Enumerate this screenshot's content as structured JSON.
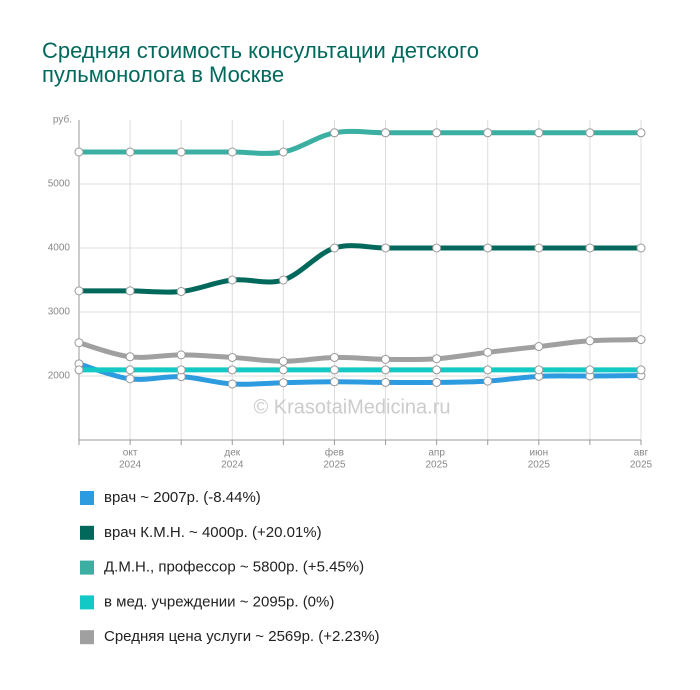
{
  "chart_data": {
    "type": "line",
    "title": [
      "Средняя стоимость консультации детского",
      "пульмонолога в Москве"
    ],
    "y_unit": "руб.",
    "watermark": "© KrasotaiMedicina.ru",
    "categories": [
      null,
      "окт",
      null,
      "дек",
      null,
      "фев",
      null,
      "апр",
      null,
      "июн",
      null,
      "авг"
    ],
    "category_years": [
      null,
      "2024",
      null,
      "2024",
      null,
      "2025",
      null,
      "2025",
      null,
      "2025",
      null,
      "2025"
    ],
    "ylim": [
      1000,
      6000
    ],
    "yticks": [
      2000,
      3000,
      4000,
      5000
    ],
    "grid": true,
    "series": [
      {
        "name": "врач ~ 2007р. (-8.44%)",
        "color": "#2d9be0",
        "values": [
          2190,
          1955,
          1990,
          1875,
          1895,
          1910,
          1900,
          1900,
          1920,
          1995,
          2000,
          2007
        ]
      },
      {
        "name": "врач К.М.Н. ~ 4000р. (+20.01%)",
        "color": "#00695c",
        "values": [
          3330,
          3330,
          3320,
          3500,
          3500,
          4000,
          4000,
          4000,
          4000,
          4000,
          4000,
          4000
        ]
      },
      {
        "name": "Д.М.Н., профессор ~ 5800р. (+5.45%)",
        "color": "#3aafa2",
        "values": [
          5500,
          5500,
          5500,
          5500,
          5500,
          5800,
          5800,
          5800,
          5800,
          5800,
          5800,
          5800
        ]
      },
      {
        "name": "в мед. учреждении ~ 2095р. (0%)",
        "color": "#12c9c6",
        "values": [
          2095,
          2095,
          2095,
          2095,
          2095,
          2095,
          2095,
          2095,
          2095,
          2095,
          2095,
          2095
        ]
      },
      {
        "name": "Средняя цена услуги ~ 2569р. (+2.23%)",
        "color": "#a0a0a0",
        "values": [
          2520,
          2300,
          2330,
          2290,
          2230,
          2290,
          2260,
          2270,
          2370,
          2460,
          2550,
          2569
        ]
      }
    ]
  }
}
